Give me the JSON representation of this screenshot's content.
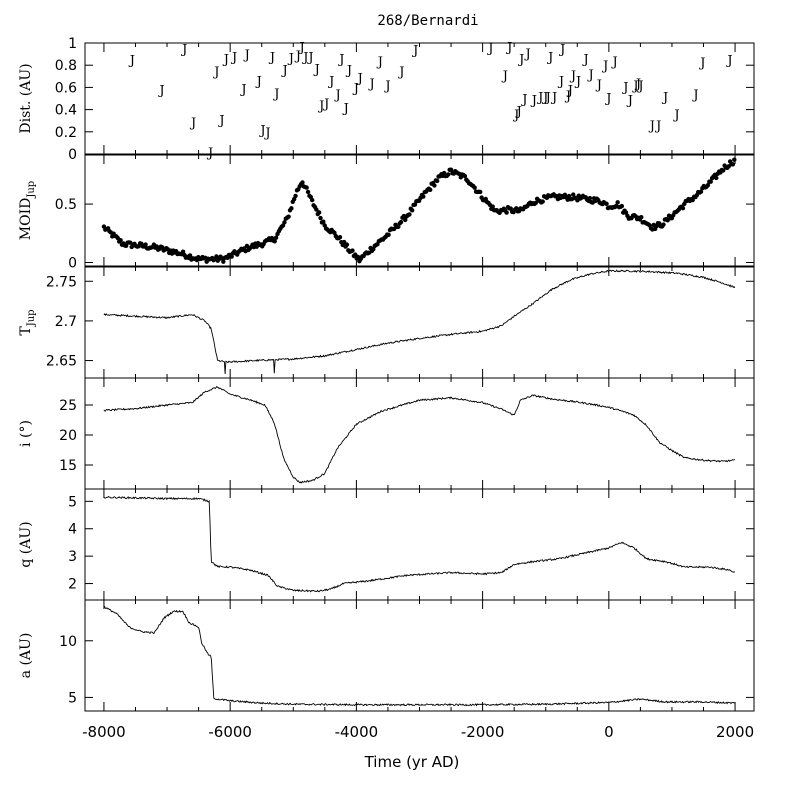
{
  "chart_data": {
    "type": "line",
    "title": "268/Bernardi",
    "xlabel": "Time (yr AD)",
    "xlim": [
      -8300,
      2300
    ],
    "x_ticks": [
      -8000,
      -6000,
      -4000,
      -2000,
      0,
      2000
    ],
    "x_tick_labels": [
      "-8000",
      "-6000",
      "-4000",
      "-2000",
      "0",
      "2000"
    ],
    "panels": [
      {
        "id": "dist",
        "ylabel": "Dist. (AU)",
        "ylim": [
          0,
          1
        ],
        "y_ticks": [
          0,
          0.2,
          0.4,
          0.6,
          0.8,
          1
        ],
        "y_tick_labels": [
          "0",
          "0.2",
          "0.4",
          "0.6",
          "0.8",
          "1"
        ],
        "type": "scatter",
        "marker_label": "J",
        "points": [
          [
            -7550,
            0.85
          ],
          [
            -7080,
            0.58
          ],
          [
            -6720,
            0.95
          ],
          [
            -6580,
            0.29
          ],
          [
            -6310,
            0.02
          ],
          [
            -6210,
            0.75
          ],
          [
            -6130,
            0.31
          ],
          [
            -6060,
            0.86
          ],
          [
            -5930,
            0.88
          ],
          [
            -5780,
            0.59
          ],
          [
            -5730,
            0.9
          ],
          [
            -5540,
            0.66
          ],
          [
            -5480,
            0.22
          ],
          [
            -5400,
            0.2
          ],
          [
            -5330,
            0.88
          ],
          [
            -5260,
            0.55
          ],
          [
            -5130,
            0.76
          ],
          [
            -5030,
            0.87
          ],
          [
            -4920,
            0.89
          ],
          [
            -4860,
            0.97
          ],
          [
            -4800,
            0.88
          ],
          [
            -4720,
            0.88
          ],
          [
            -4620,
            0.77
          ],
          [
            -4550,
            0.44
          ],
          [
            -4470,
            0.46
          ],
          [
            -4390,
            0.66
          ],
          [
            -4290,
            0.54
          ],
          [
            -4230,
            0.86
          ],
          [
            -4160,
            0.42
          ],
          [
            -4110,
            0.76
          ],
          [
            -4000,
            0.6
          ],
          [
            -3940,
            0.69
          ],
          [
            -3750,
            0.64
          ],
          [
            -3620,
            0.84
          ],
          [
            -3500,
            0.62
          ],
          [
            -3280,
            0.75
          ],
          [
            -3060,
            0.94
          ],
          [
            -1870,
            0.96
          ],
          [
            -1640,
            0.71
          ],
          [
            -1570,
            0.97
          ],
          [
            -1460,
            0.36
          ],
          [
            -1420,
            0.39
          ],
          [
            -1380,
            0.86
          ],
          [
            -1330,
            0.5
          ],
          [
            -1280,
            0.91
          ],
          [
            -1180,
            0.49
          ],
          [
            -1080,
            0.52
          ],
          [
            -1000,
            0.52
          ],
          [
            -960,
            0.52
          ],
          [
            -920,
            0.88
          ],
          [
            -860,
            0.52
          ],
          [
            -750,
            0.66
          ],
          [
            -730,
            0.95
          ],
          [
            -640,
            0.53
          ],
          [
            -610,
            0.58
          ],
          [
            -560,
            0.71
          ],
          [
            -480,
            0.66
          ],
          [
            -360,
            0.86
          ],
          [
            -280,
            0.72
          ],
          [
            -150,
            0.63
          ],
          [
            -50,
            0.8
          ],
          [
            0,
            0.51
          ],
          [
            100,
            0.84
          ],
          [
            270,
            0.61
          ],
          [
            340,
            0.49
          ],
          [
            430,
            0.62
          ],
          [
            470,
            0.64
          ],
          [
            510,
            0.62
          ],
          [
            690,
            0.26
          ],
          [
            790,
            0.26
          ],
          [
            900,
            0.52
          ],
          [
            1080,
            0.36
          ],
          [
            1380,
            0.54
          ],
          [
            1490,
            0.83
          ],
          [
            1920,
            0.85
          ]
        ]
      },
      {
        "id": "moid",
        "ylabel": "MOID",
        "ylabel_sub": "Jup",
        "ylim": [
          -0.03,
          0.92
        ],
        "y_ticks": [
          0,
          0.5
        ],
        "y_tick_labels": [
          "0",
          "0.5"
        ],
        "type": "scatter",
        "keyframes": [
          [
            -8000,
            0.3
          ],
          [
            -7700,
            0.16
          ],
          [
            -7200,
            0.13
          ],
          [
            -6800,
            0.08
          ],
          [
            -6500,
            0.03
          ],
          [
            -6100,
            0.03
          ],
          [
            -5900,
            0.08
          ],
          [
            -5700,
            0.13
          ],
          [
            -5500,
            0.16
          ],
          [
            -5300,
            0.2
          ],
          [
            -5100,
            0.37
          ],
          [
            -4950,
            0.6
          ],
          [
            -4860,
            0.7
          ],
          [
            -4700,
            0.52
          ],
          [
            -4500,
            0.32
          ],
          [
            -4300,
            0.22
          ],
          [
            -4100,
            0.1
          ],
          [
            -3950,
            0.02
          ],
          [
            -3800,
            0.1
          ],
          [
            -3500,
            0.24
          ],
          [
            -3200,
            0.4
          ],
          [
            -2900,
            0.6
          ],
          [
            -2700,
            0.72
          ],
          [
            -2500,
            0.78
          ],
          [
            -2250,
            0.72
          ],
          [
            -2000,
            0.56
          ],
          [
            -1800,
            0.44
          ],
          [
            -1600,
            0.45
          ],
          [
            -1400,
            0.44
          ],
          [
            -1200,
            0.52
          ],
          [
            -900,
            0.56
          ],
          [
            -600,
            0.56
          ],
          [
            -300,
            0.54
          ],
          [
            -100,
            0.52
          ],
          [
            0,
            0.48
          ],
          [
            150,
            0.5
          ],
          [
            300,
            0.4
          ],
          [
            500,
            0.38
          ],
          [
            700,
            0.3
          ],
          [
            850,
            0.33
          ],
          [
            1000,
            0.4
          ],
          [
            1200,
            0.5
          ],
          [
            1400,
            0.58
          ],
          [
            1600,
            0.68
          ],
          [
            1800,
            0.8
          ],
          [
            1950,
            0.86
          ],
          [
            2000,
            0.87
          ]
        ]
      },
      {
        "id": "tjup",
        "ylabel": "T",
        "ylabel_sub": "Jup",
        "ylim": [
          2.628,
          2.768
        ],
        "y_ticks": [
          2.65,
          2.7,
          2.75
        ],
        "y_tick_labels": [
          "2.65",
          "2.7",
          "2.75"
        ],
        "type": "line",
        "keyframes": [
          [
            -8000,
            2.708
          ],
          [
            -7500,
            2.706
          ],
          [
            -7000,
            2.704
          ],
          [
            -6600,
            2.708
          ],
          [
            -6400,
            2.7
          ],
          [
            -6300,
            2.69
          ],
          [
            -6200,
            2.65
          ],
          [
            -6050,
            2.648
          ],
          [
            -5600,
            2.65
          ],
          [
            -5000,
            2.652
          ],
          [
            -4500,
            2.656
          ],
          [
            -4000,
            2.664
          ],
          [
            -3500,
            2.672
          ],
          [
            -3000,
            2.678
          ],
          [
            -2500,
            2.683
          ],
          [
            -2000,
            2.687
          ],
          [
            -1700,
            2.694
          ],
          [
            -1500,
            2.706
          ],
          [
            -1200,
            2.722
          ],
          [
            -900,
            2.74
          ],
          [
            -600,
            2.752
          ],
          [
            -300,
            2.759
          ],
          [
            0,
            2.763
          ],
          [
            300,
            2.763
          ],
          [
            700,
            2.762
          ],
          [
            1100,
            2.76
          ],
          [
            1500,
            2.755
          ],
          [
            1800,
            2.748
          ],
          [
            2000,
            2.742
          ]
        ],
        "dips": [
          [
            -6080,
            2.633
          ],
          [
            -5300,
            2.634
          ]
        ]
      },
      {
        "id": "incl",
        "ylabel": "i (°)",
        "ylim": [
          11.0,
          29.5
        ],
        "y_ticks": [
          15,
          20,
          25
        ],
        "y_tick_labels": [
          "15",
          "20",
          "25"
        ],
        "type": "line",
        "keyframes": [
          [
            -8000,
            24.1
          ],
          [
            -7500,
            24.4
          ],
          [
            -7000,
            25.0
          ],
          [
            -6600,
            25.4
          ],
          [
            -6400,
            27.2
          ],
          [
            -6200,
            28.0
          ],
          [
            -6000,
            26.8
          ],
          [
            -5700,
            25.9
          ],
          [
            -5450,
            25.0
          ],
          [
            -5300,
            22.0
          ],
          [
            -5150,
            16.0
          ],
          [
            -5000,
            13.0
          ],
          [
            -4900,
            12.1
          ],
          [
            -4700,
            12.4
          ],
          [
            -4500,
            13.6
          ],
          [
            -4300,
            17.8
          ],
          [
            -4000,
            21.8
          ],
          [
            -3600,
            24.0
          ],
          [
            -3000,
            25.8
          ],
          [
            -2500,
            26.2
          ],
          [
            -2000,
            25.4
          ],
          [
            -1700,
            24.3
          ],
          [
            -1500,
            23.3
          ],
          [
            -1400,
            25.8
          ],
          [
            -1200,
            26.6
          ],
          [
            -900,
            26.0
          ],
          [
            -500,
            25.5
          ],
          [
            -200,
            25.0
          ],
          [
            0,
            24.6
          ],
          [
            200,
            24.0
          ],
          [
            400,
            23.3
          ],
          [
            600,
            21.6
          ],
          [
            800,
            18.8
          ],
          [
            1000,
            17.4
          ],
          [
            1200,
            16.2
          ],
          [
            1500,
            15.8
          ],
          [
            1800,
            15.6
          ],
          [
            2000,
            15.8
          ]
        ]
      },
      {
        "id": "q",
        "ylabel": "q (AU)",
        "ylim": [
          1.4,
          5.45
        ],
        "y_ticks": [
          2,
          3,
          4,
          5
        ],
        "y_tick_labels": [
          "2",
          "3",
          "4",
          "5"
        ],
        "type": "line",
        "keyframes": [
          [
            -8000,
            5.15
          ],
          [
            -7000,
            5.1
          ],
          [
            -6500,
            5.1
          ],
          [
            -6330,
            5.0
          ],
          [
            -6300,
            2.8
          ],
          [
            -6200,
            2.62
          ],
          [
            -6000,
            2.6
          ],
          [
            -5700,
            2.5
          ],
          [
            -5400,
            2.3
          ],
          [
            -5250,
            1.9
          ],
          [
            -5000,
            1.75
          ],
          [
            -4600,
            1.72
          ],
          [
            -4400,
            1.8
          ],
          [
            -4200,
            2.0
          ],
          [
            -3800,
            2.1
          ],
          [
            -3200,
            2.3
          ],
          [
            -2500,
            2.4
          ],
          [
            -2000,
            2.35
          ],
          [
            -1700,
            2.4
          ],
          [
            -1500,
            2.7
          ],
          [
            -1200,
            2.8
          ],
          [
            -800,
            2.9
          ],
          [
            -400,
            3.1
          ],
          [
            0,
            3.3
          ],
          [
            200,
            3.5
          ],
          [
            400,
            3.3
          ],
          [
            600,
            2.9
          ],
          [
            900,
            2.8
          ],
          [
            1200,
            2.6
          ],
          [
            1600,
            2.6
          ],
          [
            1900,
            2.5
          ],
          [
            2000,
            2.4
          ]
        ]
      },
      {
        "id": "a",
        "ylabel": "a (AU)",
        "ylim": [
          3.8,
          13.6
        ],
        "y_ticks": [
          5,
          10
        ],
        "y_tick_labels": [
          "5",
          "10"
        ],
        "type": "line",
        "keyframes": [
          [
            -8000,
            13.0
          ],
          [
            -7800,
            12.4
          ],
          [
            -7600,
            11.2
          ],
          [
            -7400,
            10.8
          ],
          [
            -7200,
            10.7
          ],
          [
            -7050,
            12.0
          ],
          [
            -6900,
            12.6
          ],
          [
            -6750,
            12.6
          ],
          [
            -6650,
            11.6
          ],
          [
            -6500,
            11.2
          ],
          [
            -6450,
            9.8
          ],
          [
            -6350,
            8.8
          ],
          [
            -6300,
            8.6
          ],
          [
            -6260,
            4.9
          ],
          [
            -6000,
            4.7
          ],
          [
            -5500,
            4.5
          ],
          [
            -5000,
            4.4
          ],
          [
            -4000,
            4.35
          ],
          [
            -3000,
            4.35
          ],
          [
            -2000,
            4.35
          ],
          [
            -1000,
            4.4
          ],
          [
            0,
            4.55
          ],
          [
            500,
            4.85
          ],
          [
            900,
            4.6
          ],
          [
            1500,
            4.6
          ],
          [
            2000,
            4.5
          ]
        ]
      }
    ]
  }
}
